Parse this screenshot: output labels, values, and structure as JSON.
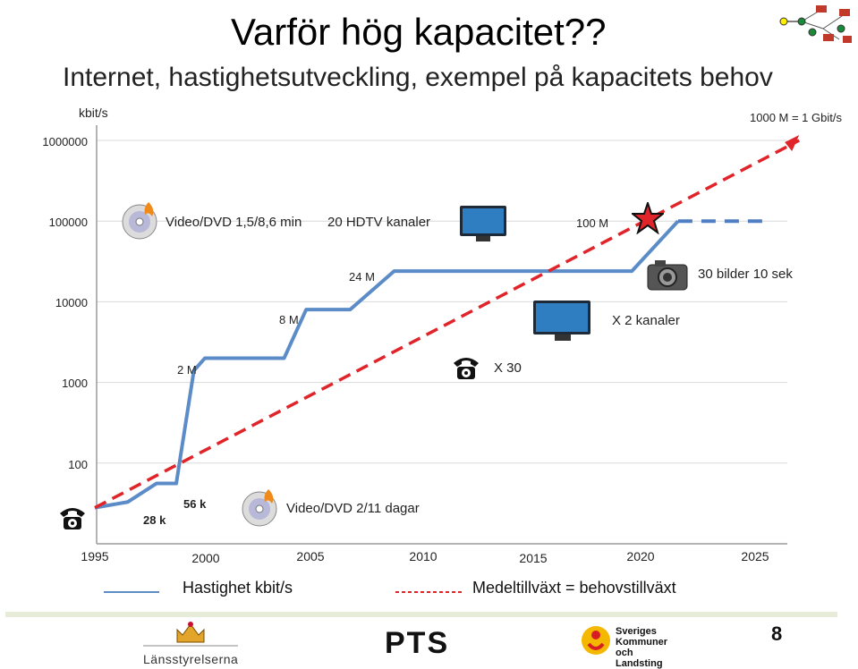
{
  "slide": {
    "title": "Varför hög kapacitet??",
    "subtitle": "Internet, hastighetsutveckling, exempel på kapacitets behov",
    "page_number": "8"
  },
  "chart_data": {
    "type": "line",
    "y_unit": "kbit/s",
    "y_scale": "log",
    "ylim": [
      10,
      1000000
    ],
    "xlim": [
      1995,
      2026
    ],
    "y_ticks": [
      "1000000",
      "100000",
      "10000",
      "1000",
      "100"
    ],
    "x_ticks": [
      "1995",
      "2000",
      "2005",
      "2010",
      "2015",
      "2020",
      "2025"
    ],
    "unit_note": "1000 M = 1 Gbit/s",
    "grid": true,
    "series": [
      {
        "name": "Hastighet kbit/s",
        "color": "#5b8cc7",
        "style": "solid",
        "x": [
          1995,
          1996.5,
          1997.8,
          1998.7,
          1999.5,
          2000,
          2003.6,
          2004.6,
          2006.6,
          2008.6,
          2009.6,
          2019.4,
          2021.5
        ],
        "y": [
          28,
          33,
          56,
          56,
          1400,
          2000,
          2000,
          8000,
          8000,
          24000,
          24000,
          24000,
          100000
        ]
      },
      {
        "name": "Medeltillväxt = behovstillväxt",
        "color": "#e0242a",
        "style": "dashed",
        "x": [
          1995,
          2027
        ],
        "y": [
          28,
          1000000
        ]
      },
      {
        "name": "",
        "color": "#4f7fc2",
        "style": "dashed",
        "x": [
          2021.5,
          2025.5
        ],
        "y": [
          100000,
          100000
        ]
      }
    ],
    "annotations": [
      {
        "text": "28 k",
        "bold": true
      },
      {
        "text": "56 k",
        "bold": true
      },
      {
        "text": "2 M"
      },
      {
        "text": "8 M"
      },
      {
        "text": "24 M"
      },
      {
        "text": "100 M"
      },
      {
        "text": "Video/DVD 1,5/8,6 min"
      },
      {
        "text": "20 HDTV kanaler"
      },
      {
        "text": "30 bilder 10 sek"
      },
      {
        "text": "X 2 kanaler"
      },
      {
        "text": "X 30"
      },
      {
        "text": "Video/DVD  2/11 dagar"
      }
    ],
    "icons": [
      "dvd-icon",
      "dvd-icon",
      "tv-icon",
      "tv-icon",
      "camera-icon",
      "telephone-icon",
      "telephone-icon",
      "star-icon"
    ],
    "legend": [
      {
        "label": "Hastighet kbit/s",
        "color": "#5b8cc7",
        "style": "solid"
      },
      {
        "label": "Medeltillväxt = behovstillväxt",
        "color": "#e0242a",
        "style": "dashed"
      }
    ]
  },
  "footer": {
    "logos": [
      {
        "name": "lansstyrelserna-logo",
        "text": "Länsstyrelserna"
      },
      {
        "name": "pts-logo",
        "text": "PTS"
      },
      {
        "name": "skl-logo",
        "text": "Sveriges Kommuner och Landsting"
      }
    ]
  }
}
